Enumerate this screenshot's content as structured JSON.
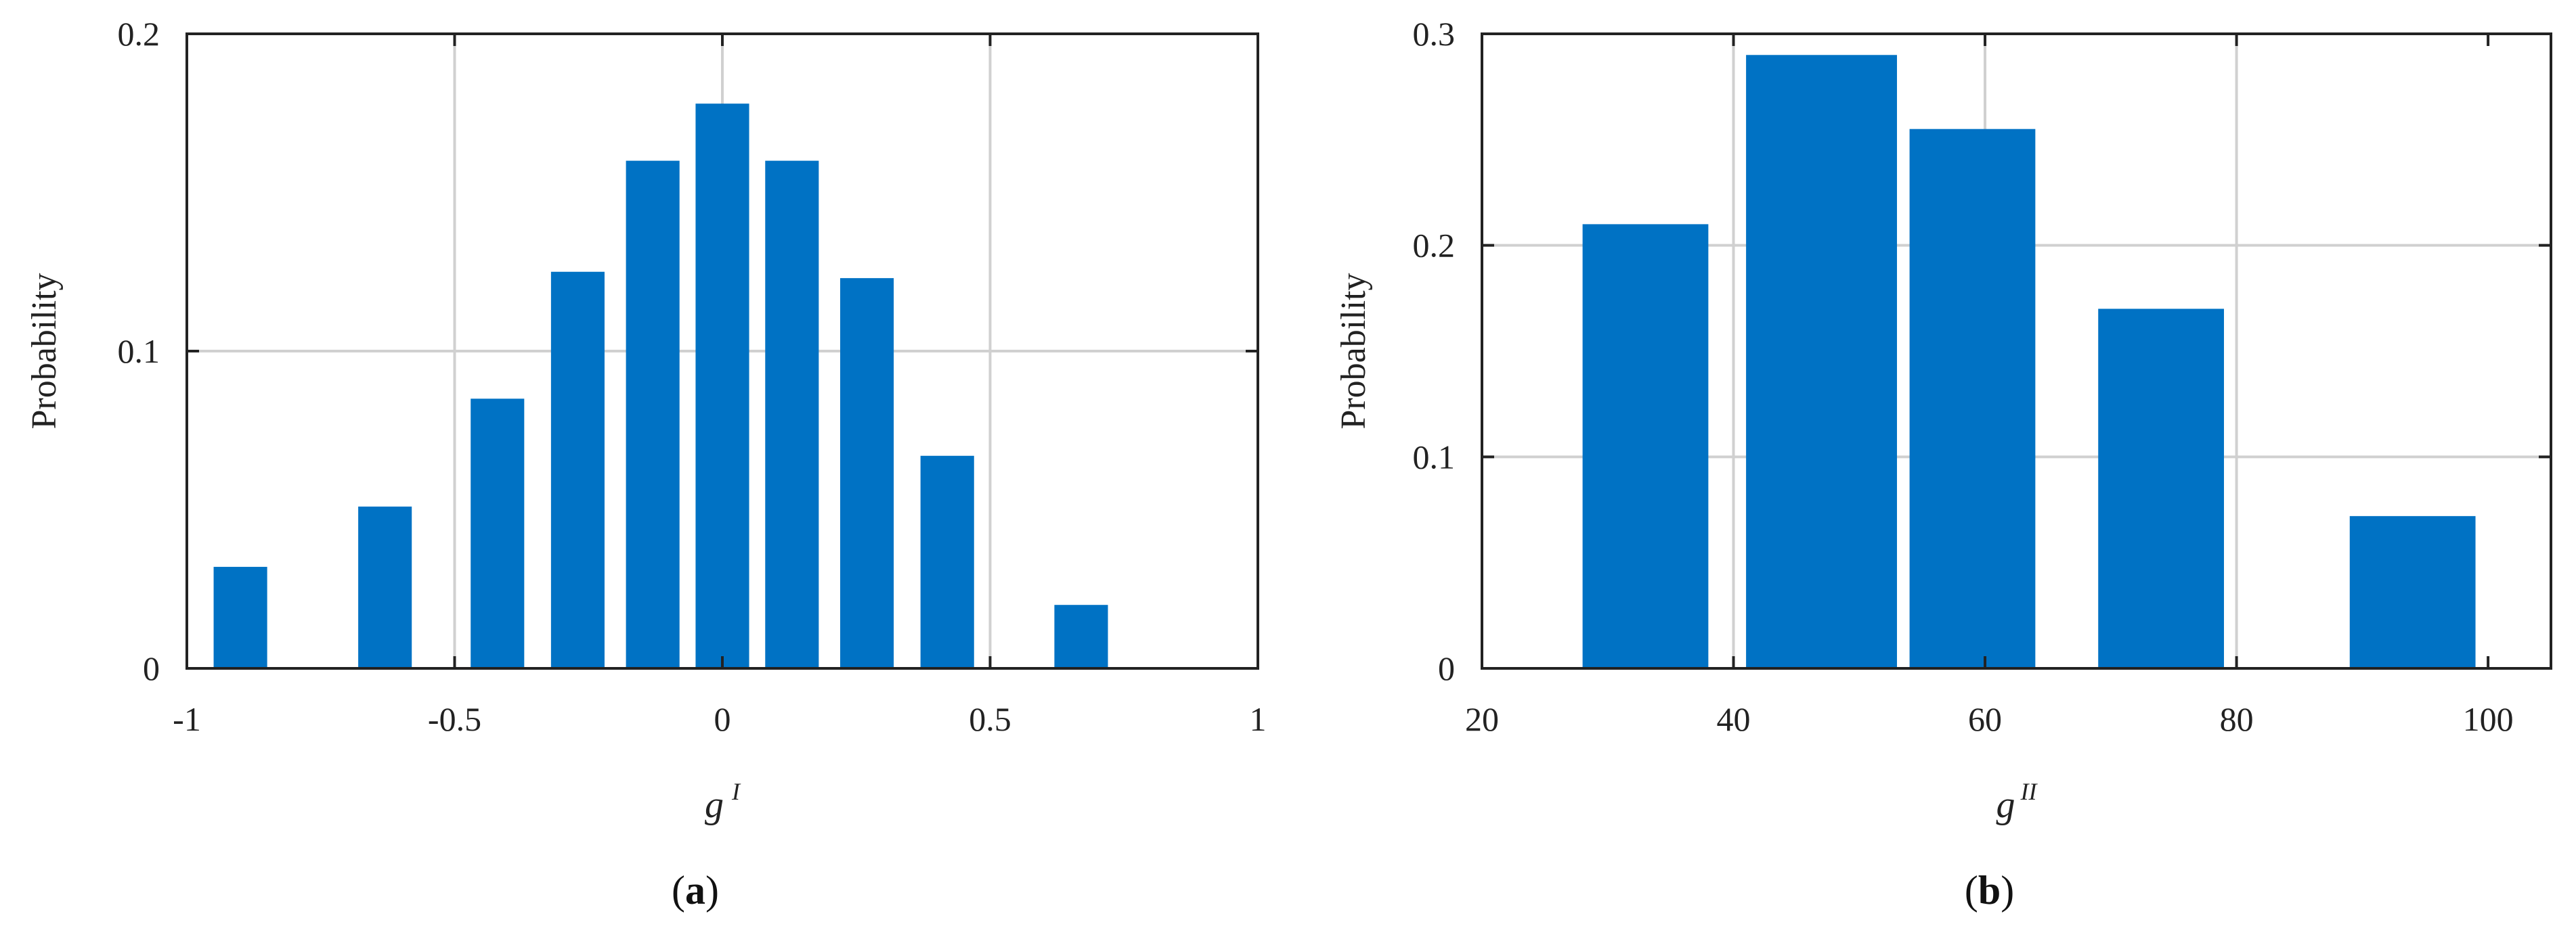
{
  "chart_data": [
    {
      "type": "bar",
      "panel_label": "a",
      "x": [
        -0.9,
        -0.63,
        -0.42,
        -0.27,
        -0.13,
        0.0,
        0.13,
        0.27,
        0.42,
        0.67
      ],
      "values": [
        0.032,
        0.051,
        0.085,
        0.125,
        0.16,
        0.178,
        0.16,
        0.123,
        0.067,
        0.02
      ],
      "bar_width": 0.1,
      "xlim": [
        -1,
        1
      ],
      "ylim": [
        0,
        0.2
      ],
      "xticks": [
        -1,
        -0.5,
        0,
        0.5,
        1
      ],
      "xtick_labels": [
        "-1",
        "-0.5",
        "0",
        "0.5",
        "1"
      ],
      "yticks": [
        0,
        0.1,
        0.2
      ],
      "ytick_labels": [
        "0",
        "0.1",
        "0.2"
      ],
      "xlabel": "g",
      "xlabel_sup": "I",
      "ylabel": "Probability",
      "grid": true,
      "color": "#0072C4"
    },
    {
      "type": "bar",
      "panel_label": "b",
      "x": [
        33,
        47,
        59,
        74,
        94
      ],
      "values": [
        0.21,
        0.29,
        0.255,
        0.17,
        0.072
      ],
      "bar_widths": [
        10,
        12,
        10,
        10,
        10
      ],
      "xlim": [
        20,
        105
      ],
      "ylim": [
        0,
        0.3
      ],
      "xticks": [
        20,
        40,
        60,
        80,
        100
      ],
      "xtick_labels": [
        "20",
        "40",
        "60",
        "80",
        "100"
      ],
      "yticks": [
        0,
        0.1,
        0.2,
        0.3
      ],
      "ytick_labels": [
        "0",
        "0.1",
        "0.2",
        "0.3"
      ],
      "xlabel": "g",
      "xlabel_sup": "II",
      "ylabel": "Probability",
      "grid": true,
      "color": "#0072C4"
    }
  ]
}
